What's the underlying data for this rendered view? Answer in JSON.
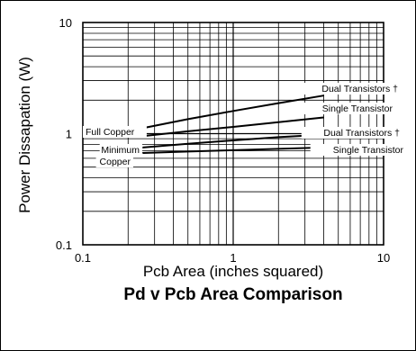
{
  "chart_data": {
    "type": "line",
    "title": "Pd v Pcb Area Comparison",
    "xlabel": "Pcb Area (inches squared)",
    "ylabel": "Power Dissapation (W)",
    "x_scale": "log",
    "y_scale": "log",
    "xlim": [
      0.1,
      10
    ],
    "ylim": [
      0.1,
      10
    ],
    "x_ticks": [
      "0.1",
      "1",
      "10"
    ],
    "y_ticks": [
      "0.1",
      "1",
      "10"
    ],
    "grid": true,
    "series": [
      {
        "curve": "full-copper-dual",
        "x": [
          0.25,
          0.5,
          1,
          2,
          4
        ],
        "y": [
          1.12,
          1.35,
          1.6,
          1.88,
          2.2
        ]
      },
      {
        "curve": "full-copper-single",
        "x": [
          0.25,
          0.5,
          1,
          2,
          4
        ],
        "y": [
          0.95,
          1.05,
          1.15,
          1.27,
          1.4
        ]
      },
      {
        "curve": "minimum-copper-dual",
        "x": [
          0.25,
          0.5,
          1,
          2,
          4
        ],
        "y": [
          0.75,
          0.81,
          0.87,
          0.93,
          0.98
        ]
      },
      {
        "curve": "minimum-copper-single",
        "x": [
          0.25,
          0.5,
          1,
          2,
          4
        ],
        "y": [
          0.67,
          0.69,
          0.71,
          0.73,
          0.75
        ]
      }
    ],
    "annotations": {
      "full_copper": "Full Copper",
      "minimum": "Minimum",
      "copper": "Copper",
      "dual_1": "Dual Transistors †",
      "single_1": "Single Transistor",
      "dual_2": "Dual Transistors †",
      "single_2": "Single Transistor"
    }
  }
}
